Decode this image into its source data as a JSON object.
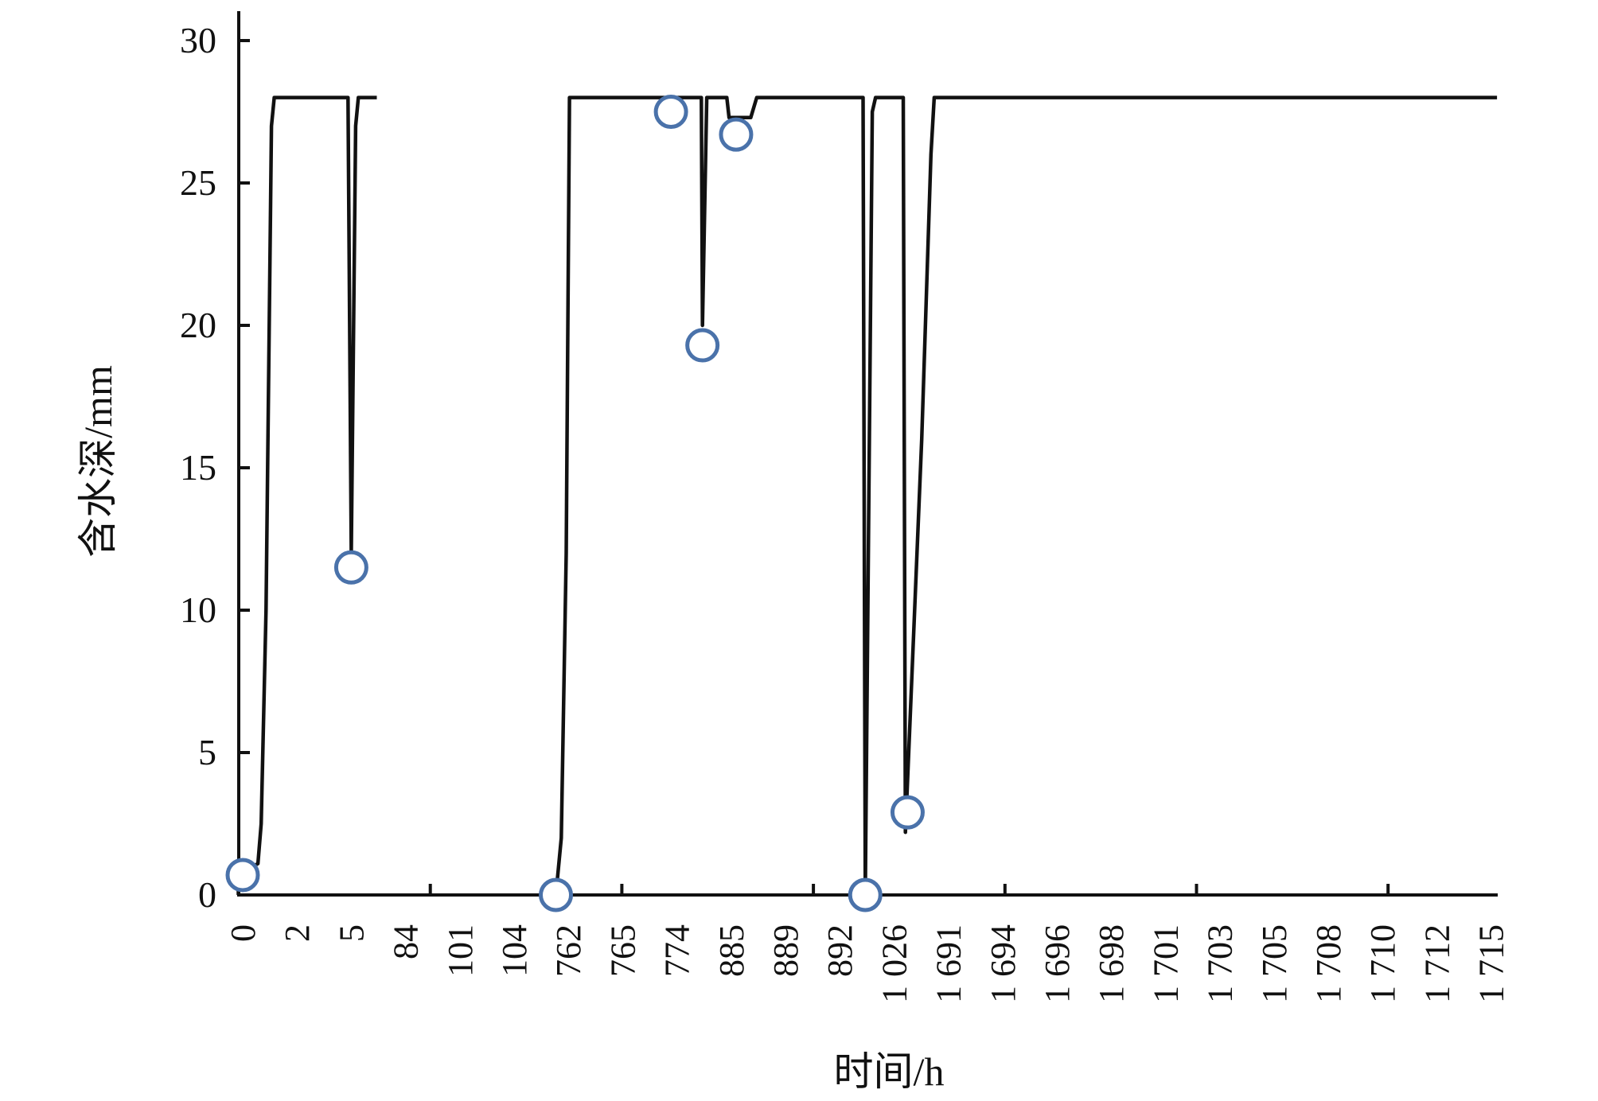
{
  "chart_data": {
    "type": "line",
    "title": "",
    "xlabel": "时间/h",
    "ylabel": "含水深/mm",
    "ylim": [
      0,
      30
    ],
    "yticks": [
      0,
      5,
      10,
      15,
      20,
      25,
      30
    ],
    "grid": false,
    "categories": [
      "0",
      "2",
      "5",
      "84",
      "101",
      "104",
      "762",
      "765",
      "774",
      "885",
      "889",
      "892",
      "1 026",
      "1 691",
      "1 694",
      "1 696",
      "1 698",
      "1 701",
      "1 703",
      "1 705",
      "1 708",
      "1 710",
      "1 712",
      "1 715"
    ],
    "colors": {
      "line": "#111111",
      "marker": "#4a72aa"
    },
    "series": [
      {
        "segments": [
          [
            [
              -0.08,
              0
            ],
            [
              -0.08,
              0.7
            ],
            [
              0.28,
              1.1
            ],
            [
              0.34,
              2.5
            ],
            [
              0.43,
              10
            ],
            [
              0.53,
              27
            ],
            [
              0.58,
              28
            ],
            [
              1.94,
              28
            ],
            [
              2.0,
              12
            ],
            [
              2.08,
              27
            ],
            [
              2.13,
              28
            ],
            [
              2.47,
              28
            ]
          ],
          [
            [
              5.77,
              0
            ],
            [
              5.87,
              2
            ],
            [
              5.96,
              12
            ],
            [
              6.02,
              28
            ],
            [
              8.45,
              28
            ],
            [
              8.47,
              20
            ],
            [
              8.55,
              28
            ],
            [
              8.92,
              28
            ],
            [
              8.96,
              27.3
            ],
            [
              9.36,
              27.3
            ],
            [
              9.47,
              28
            ],
            [
              11.43,
              28
            ],
            [
              11.47,
              0
            ],
            [
              11.6,
              27.5
            ],
            [
              11.66,
              28
            ],
            [
              12.17,
              28
            ],
            [
              12.21,
              2.2
            ],
            [
              12.38,
              10
            ],
            [
              12.51,
              16
            ],
            [
              12.68,
              26
            ],
            [
              12.74,
              28
            ],
            [
              23.11,
              28
            ]
          ]
        ]
      }
    ],
    "markers": [
      [
        0,
        0.7
      ],
      [
        2.0,
        11.5
      ],
      [
        5.77,
        0
      ],
      [
        7.89,
        27.5
      ],
      [
        8.47,
        19.3
      ],
      [
        9.09,
        26.7
      ],
      [
        11.47,
        0
      ],
      [
        12.25,
        2.9
      ]
    ]
  }
}
